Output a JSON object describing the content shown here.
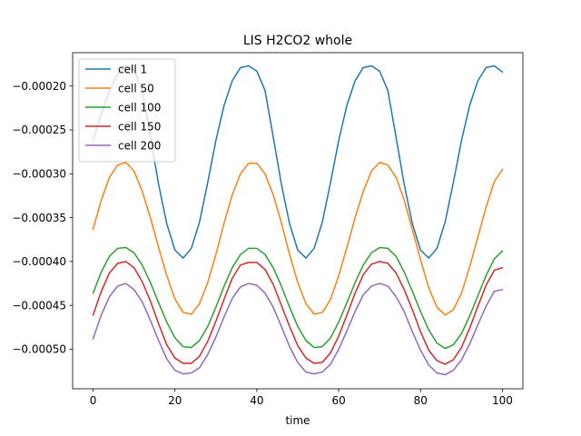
{
  "chart_data": {
    "type": "line",
    "title": "LIS H2CO2 whole",
    "xlabel": "time",
    "ylabel": "",
    "xlim": [
      -5,
      105
    ],
    "ylim": [
      -0.000545,
      -0.000162
    ],
    "xticks": [
      0,
      20,
      40,
      60,
      80,
      100
    ],
    "xtick_labels": [
      "0",
      "20",
      "40",
      "60",
      "80",
      "100"
    ],
    "yticks": [
      -0.0005,
      -0.00045,
      -0.0004,
      -0.00035,
      -0.0003,
      -0.00025,
      -0.0002
    ],
    "ytick_labels": [
      "−0.00050",
      "−0.00045",
      "−0.00040",
      "−0.00035",
      "−0.00030",
      "−0.00025",
      "−0.00020"
    ],
    "legend_position": "top-left",
    "grid": false,
    "x": [
      0,
      2,
      4,
      6,
      8,
      10,
      12,
      14,
      16,
      18,
      20,
      22,
      24,
      26,
      28,
      30,
      32,
      34,
      36,
      38,
      40,
      42,
      44,
      46,
      48,
      50,
      52,
      54,
      56,
      58,
      60,
      62,
      64,
      66,
      68,
      70,
      72,
      74,
      76,
      78,
      80,
      82,
      84,
      86,
      88,
      90,
      92,
      94,
      96,
      98,
      100
    ],
    "series": [
      {
        "name": "cell 1",
        "color": "#1f77b4",
        "values": [
          -0.000262,
          -0.000232,
          -0.000205,
          -0.000186,
          -0.000177,
          -0.000181,
          -0.000205,
          -0.000258,
          -0.000312,
          -0.000357,
          -0.000387,
          -0.000396,
          -0.000385,
          -0.000355,
          -0.00031,
          -0.000262,
          -0.000222,
          -0.000194,
          -0.000179,
          -0.000177,
          -0.000183,
          -0.000205,
          -0.000258,
          -0.000312,
          -0.000357,
          -0.000387,
          -0.000396,
          -0.000385,
          -0.000355,
          -0.00031,
          -0.000262,
          -0.000222,
          -0.000194,
          -0.000179,
          -0.000177,
          -0.000183,
          -0.000205,
          -0.000258,
          -0.000312,
          -0.000357,
          -0.000387,
          -0.000396,
          -0.000385,
          -0.000355,
          -0.00031,
          -0.000262,
          -0.000222,
          -0.000194,
          -0.000179,
          -0.000177,
          -0.000184
        ]
      },
      {
        "name": "cell 50",
        "color": "#ff7f0e",
        "values": [
          -0.000363,
          -0.00033,
          -0.000304,
          -0.00029,
          -0.000287,
          -0.000297,
          -0.00032,
          -0.00035,
          -0.000384,
          -0.000416,
          -0.000443,
          -0.000458,
          -0.00046,
          -0.000448,
          -0.000424,
          -0.000392,
          -0.000356,
          -0.000324,
          -0.0003,
          -0.000288,
          -0.000288,
          -0.0003,
          -0.000324,
          -0.000356,
          -0.000392,
          -0.000424,
          -0.000448,
          -0.00046,
          -0.000458,
          -0.000443,
          -0.000416,
          -0.000384,
          -0.00035,
          -0.00032,
          -0.000297,
          -0.000287,
          -0.00029,
          -0.000304,
          -0.00033,
          -0.000364,
          -0.000398,
          -0.00043,
          -0.000452,
          -0.000461,
          -0.000455,
          -0.000436,
          -0.000406,
          -0.000372,
          -0.000338,
          -0.000309,
          -0.000295
        ]
      },
      {
        "name": "cell 100",
        "color": "#2ca02c",
        "values": [
          -0.000436,
          -0.000412,
          -0.000394,
          -0.000385,
          -0.000384,
          -0.00039,
          -0.000404,
          -0.000424,
          -0.000447,
          -0.000469,
          -0.000487,
          -0.000497,
          -0.000498,
          -0.00049,
          -0.000474,
          -0.000452,
          -0.000428,
          -0.000407,
          -0.000392,
          -0.000385,
          -0.000385,
          -0.000392,
          -0.000407,
          -0.000428,
          -0.000452,
          -0.000474,
          -0.00049,
          -0.000498,
          -0.000497,
          -0.000487,
          -0.000469,
          -0.000447,
          -0.000424,
          -0.000404,
          -0.00039,
          -0.000384,
          -0.000385,
          -0.000394,
          -0.000412,
          -0.000434,
          -0.000457,
          -0.000478,
          -0.000493,
          -0.000499,
          -0.000495,
          -0.000482,
          -0.000462,
          -0.000439,
          -0.000416,
          -0.000397,
          -0.000388
        ]
      },
      {
        "name": "cell 150",
        "color": "#d62728",
        "values": [
          -0.000461,
          -0.000434,
          -0.000413,
          -0.000402,
          -0.0004,
          -0.000407,
          -0.000423,
          -0.000445,
          -0.000471,
          -0.000495,
          -0.00051,
          -0.000516,
          -0.000516,
          -0.000508,
          -0.000491,
          -0.000468,
          -0.000443,
          -0.000419,
          -0.000404,
          -0.000401,
          -0.000401,
          -0.000409,
          -0.000426,
          -0.00045,
          -0.000474,
          -0.000496,
          -0.00051,
          -0.000516,
          -0.000515,
          -0.000504,
          -0.000485,
          -0.000461,
          -0.000436,
          -0.000415,
          -0.000403,
          -0.0004,
          -0.000402,
          -0.000413,
          -0.000432,
          -0.000455,
          -0.00048,
          -0.000501,
          -0.000513,
          -0.000517,
          -0.000512,
          -0.000498,
          -0.000476,
          -0.000451,
          -0.000427,
          -0.00041,
          -0.000407
        ]
      },
      {
        "name": "cell 200",
        "color": "#9467bd",
        "values": [
          -0.000488,
          -0.000461,
          -0.00044,
          -0.000428,
          -0.000425,
          -0.000432,
          -0.000446,
          -0.000467,
          -0.00049,
          -0.000511,
          -0.000524,
          -0.000528,
          -0.000527,
          -0.000521,
          -0.000506,
          -0.000486,
          -0.000463,
          -0.000442,
          -0.000429,
          -0.000425,
          -0.000427,
          -0.000436,
          -0.000452,
          -0.000474,
          -0.000497,
          -0.000515,
          -0.000526,
          -0.000528,
          -0.000526,
          -0.000517,
          -0.0005,
          -0.000479,
          -0.000457,
          -0.000438,
          -0.000428,
          -0.000425,
          -0.000428,
          -0.00044,
          -0.000457,
          -0.00048,
          -0.000501,
          -0.000518,
          -0.000527,
          -0.000529,
          -0.000524,
          -0.000512,
          -0.000494,
          -0.000472,
          -0.000451,
          -0.000434,
          -0.000432
        ]
      }
    ]
  }
}
